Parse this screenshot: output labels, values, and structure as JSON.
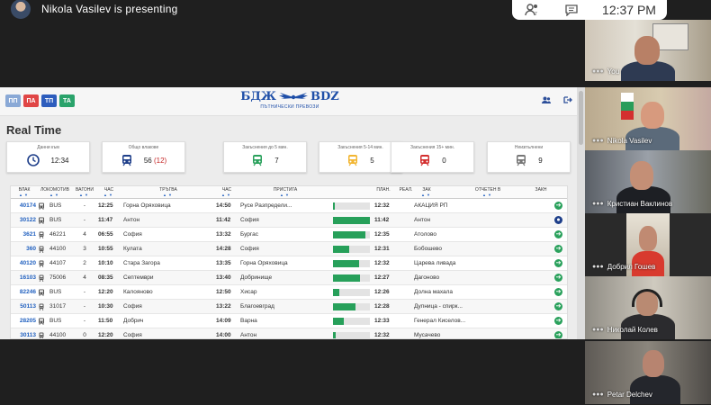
{
  "presenter": {
    "text": "Nikola Vasilev is presenting"
  },
  "controls": {
    "time": "12:37 PM",
    "icons": [
      "people-icon",
      "chat-icon"
    ]
  },
  "app": {
    "tabs": [
      "ПП",
      "ПА",
      "ТП",
      "ТА"
    ],
    "logo": {
      "left": "БДЖ",
      "right": "BDZ",
      "sub": "ПЪТНИЧЕСКИ ПРЕВОЗИ"
    },
    "title": "Real Time",
    "cards": [
      {
        "label": "Данни към",
        "value": "12:34",
        "icon": "clock-icon",
        "color": "#1f3f8a"
      },
      {
        "label": "Общо влакове",
        "value": "56",
        "extra": "(12)",
        "icon": "train-icon",
        "color": "#1f3f8a"
      },
      {
        "label": "Закъснения до 5 мин.",
        "value": "7",
        "icon": "train-icon",
        "color": "#2aa15c"
      },
      {
        "label": "Закъснения 5-14 мин.",
        "value": "5",
        "icon": "train-icon",
        "color": "#f2b632"
      },
      {
        "label": "Закъснения 15+ мин.",
        "value": "0",
        "icon": "train-icon",
        "color": "#d32f2f"
      },
      {
        "label": "Неизпълнени",
        "value": "9",
        "icon": "train-icon",
        "color": "#777777"
      }
    ],
    "headers": [
      "ВЛАК",
      "ЛОКОМОТИВ",
      "ВАГОНИ",
      "ЧАС",
      "ТРЪГВА",
      "ЧАС",
      "ПРИСТИГА",
      "ПЛАН.",
      "РЕАЛ.",
      "ЗАК",
      "ОТЧЕТЕН В",
      "ЗАКН"
    ],
    "rows": [
      {
        "train": "40174",
        "loco": "BUS",
        "wagons": "-",
        "dep": "12:25",
        "from": "Горна Оряховица",
        "arr": "14:50",
        "to": "Русе Разпредели...",
        "progress": 0.05,
        "plan": "12:32",
        "reported": "АКАЦИЯ РП",
        "action": "green"
      },
      {
        "train": "30122",
        "loco": "BUS",
        "wagons": "-",
        "dep": "11:47",
        "from": "Антон",
        "arr": "11:42",
        "to": "София",
        "progress": 1.0,
        "plan": "11:42",
        "reported": "Антон",
        "action": "blue"
      },
      {
        "train": "3621",
        "loco": "46221",
        "wagons": "4",
        "dep": "06:55",
        "from": "София",
        "arr": "13:32",
        "to": "Бургас",
        "progress": 0.88,
        "plan": "12:35",
        "reported": "Атолово",
        "action": "green"
      },
      {
        "train": "360",
        "loco": "44100",
        "wagons": "3",
        "dep": "10:55",
        "from": "Кулата",
        "arr": "14:28",
        "to": "София",
        "progress": 0.45,
        "plan": "12:31",
        "reported": "Бобошево",
        "action": "green"
      },
      {
        "train": "40120",
        "loco": "44107",
        "wagons": "2",
        "dep": "10:10",
        "from": "Стара Загора",
        "arr": "13:35",
        "to": "Горна Оряховица",
        "progress": 0.7,
        "plan": "12:32",
        "reported": "Царева ливада",
        "action": "green"
      },
      {
        "train": "16103",
        "loco": "75006",
        "wagons": "4",
        "dep": "08:35",
        "from": "Септември",
        "arr": "13:40",
        "to": "Добринище",
        "progress": 0.72,
        "plan": "12:27",
        "reported": "Дагоново",
        "action": "green"
      },
      {
        "train": "82246",
        "loco": "BUS",
        "wagons": "-",
        "dep": "12:20",
        "from": "Калояново",
        "arr": "12:50",
        "to": "Хисар",
        "progress": 0.18,
        "plan": "12:26",
        "reported": "Долна махала",
        "action": "green"
      },
      {
        "train": "50113",
        "loco": "31017",
        "wagons": "-",
        "dep": "10:30",
        "from": "София",
        "arr": "13:22",
        "to": "Благоевград",
        "progress": 0.62,
        "plan": "12:28",
        "reported": "Дупница - спирк...",
        "action": "green"
      },
      {
        "train": "28205",
        "loco": "BUS",
        "wagons": "-",
        "dep": "11:50",
        "from": "Добрич",
        "arr": "14:09",
        "to": "Варна",
        "progress": 0.3,
        "plan": "12:33",
        "reported": "Генерал Киселов...",
        "action": "green"
      },
      {
        "train": "30113",
        "loco": "44100",
        "wagons": "0",
        "dep": "12:20",
        "from": "София",
        "arr": "14:00",
        "to": "Антон",
        "progress": 0.08,
        "plan": "12:32",
        "reported": "Мусачево",
        "action": "green"
      }
    ]
  },
  "participants": [
    {
      "name": "You",
      "label": "You"
    },
    {
      "name": "Nikola Vasilev"
    },
    {
      "name": "Кристиан Ваклинов"
    },
    {
      "name": "Добрил Гошев"
    },
    {
      "name": "Николай Колев"
    },
    {
      "name": "Petar Delchev"
    }
  ]
}
